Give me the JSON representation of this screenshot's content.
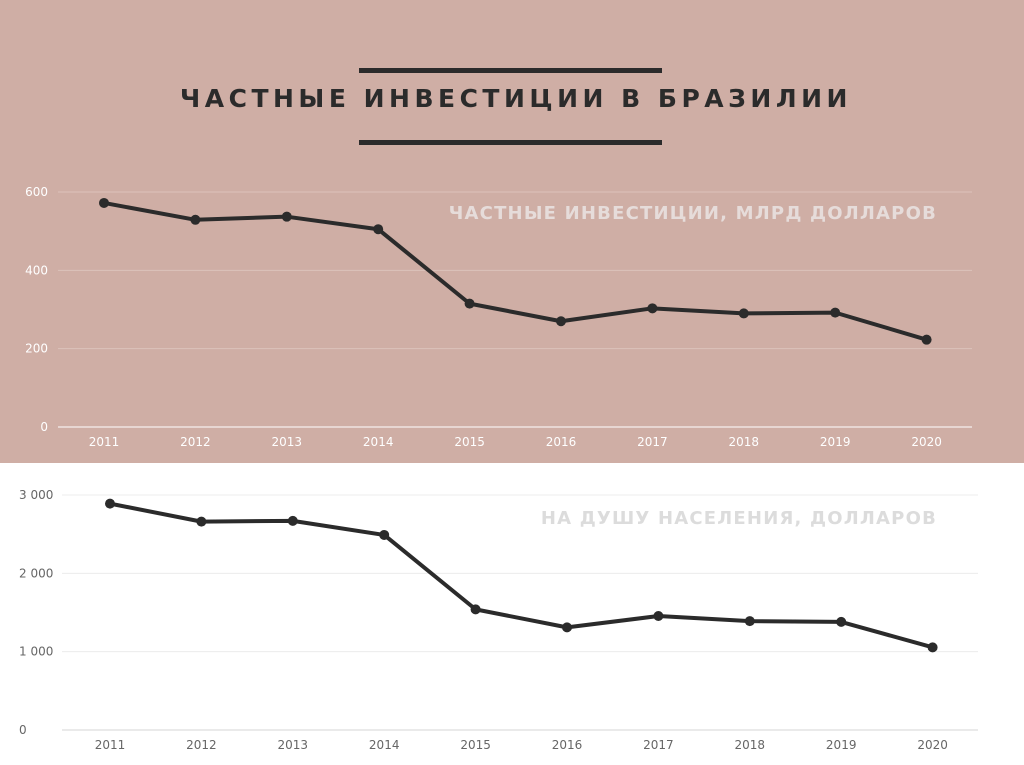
{
  "page_title": "ЧАСТНЫЕ ИНВЕСТИЦИИ В БРАЗИЛИИ",
  "colors": {
    "top_background": "#cfaea5",
    "bottom_background": "#ffffff",
    "line": "#2b2b2b",
    "title_rule": "#2b2b2b"
  },
  "chart_data": [
    {
      "type": "line",
      "title": "ЧАСТНЫЕ ИНВЕСТИЦИИ, МЛРД ДОЛЛАРОВ",
      "categories": [
        "2011",
        "2012",
        "2013",
        "2014",
        "2015",
        "2016",
        "2017",
        "2018",
        "2019",
        "2020"
      ],
      "values": [
        572,
        529,
        537,
        505,
        315,
        270,
        303,
        290,
        292,
        223
      ],
      "ylim": [
        0,
        600
      ],
      "yticks": [
        0,
        200,
        400,
        600
      ],
      "ytick_labels": [
        "0",
        "200",
        "400",
        "600"
      ],
      "grid": true,
      "xlabel": "",
      "ylabel": ""
    },
    {
      "type": "line",
      "title": "НА ДУШУ НАСЕЛЕНИЯ, ДОЛЛАРОВ",
      "categories": [
        "2011",
        "2012",
        "2013",
        "2014",
        "2015",
        "2016",
        "2017",
        "2018",
        "2019",
        "2020"
      ],
      "values": [
        2890,
        2660,
        2670,
        2490,
        1540,
        1310,
        1455,
        1390,
        1380,
        1055
      ],
      "ylim": [
        0,
        3000
      ],
      "yticks": [
        0,
        1000,
        2000,
        3000
      ],
      "ytick_labels": [
        "0",
        "1 000",
        "2 000",
        "3 000"
      ],
      "grid": true,
      "xlabel": "",
      "ylabel": ""
    }
  ]
}
